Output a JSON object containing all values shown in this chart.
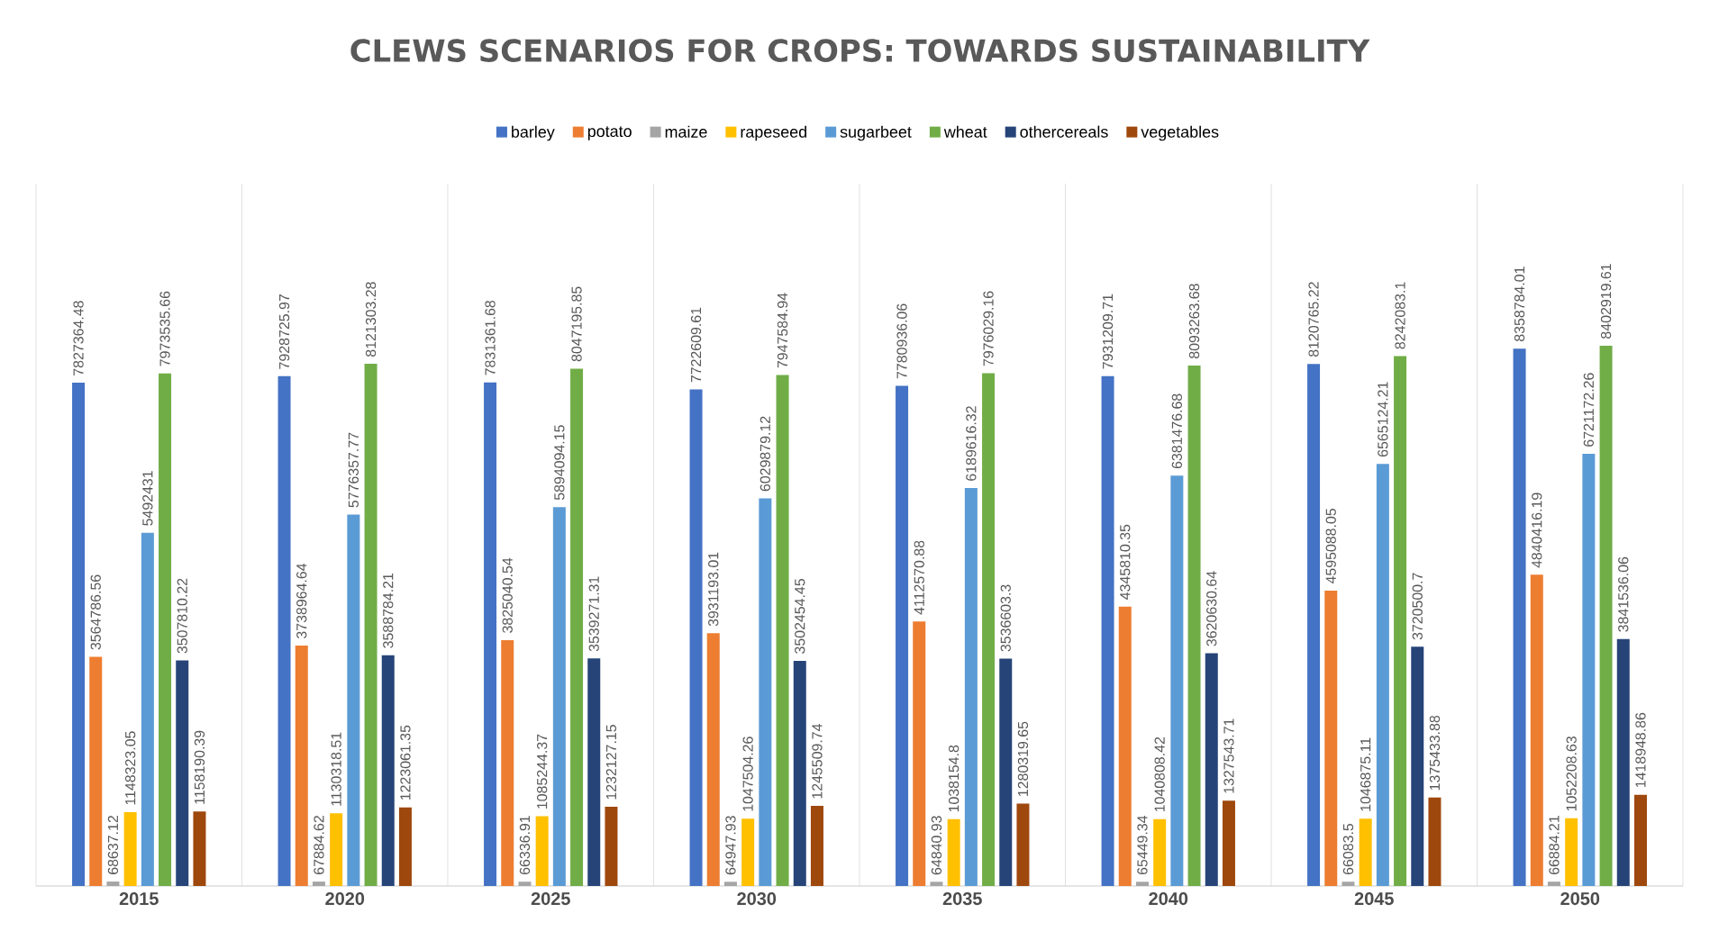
{
  "chart_data": {
    "type": "bar",
    "title": "CLEWS SCENARIOS FOR CROPS: TOWARDS SUSTAINABILITY",
    "categories": [
      "2015",
      "2020",
      "2025",
      "2030",
      "2035",
      "2040",
      "2045",
      "2050"
    ],
    "series": [
      {
        "name": "barley",
        "color": "#4472c4",
        "values": [
          7827364.48,
          7928725.97,
          7831361.68,
          7722609.61,
          7780936.06,
          7931209.71,
          8120765.22,
          8358784.01
        ]
      },
      {
        "name": "potato",
        "color": "#ed7d31",
        "values": [
          3564786.56,
          3738964.64,
          3825040.54,
          3931193.01,
          4112570.88,
          4345810.35,
          4595088.05,
          4840416.19
        ]
      },
      {
        "name": "maize",
        "color": "#a5a5a5",
        "values": [
          68637.12,
          67884.62,
          66336.91,
          64947.93,
          64840.93,
          65449.34,
          66083.5,
          66884.21
        ]
      },
      {
        "name": "rapeseed",
        "color": "#ffc000",
        "values": [
          1148323.05,
          1130318.51,
          1085244.37,
          1047504.26,
          1038154.8,
          1040808.42,
          1046875.11,
          1052208.63
        ]
      },
      {
        "name": "sugarbeet",
        "color": "#5b9bd5",
        "values": [
          5492431,
          5776357.77,
          5894094.15,
          6029879.12,
          6189616.32,
          6381476.68,
          6565124.21,
          6721172.26
        ]
      },
      {
        "name": "wheat",
        "color": "#70ad47",
        "values": [
          7973535.66,
          8121303.28,
          8047195.85,
          7947584.94,
          7976029.16,
          8093263.68,
          8242083.1,
          8402919.61
        ]
      },
      {
        "name": "othercereals",
        "color": "#264478",
        "values": [
          3507810.22,
          3588784.21,
          3539271.31,
          3502454.45,
          3536603.3,
          3620630.64,
          3720500.7,
          3841536.06
        ]
      },
      {
        "name": "vegetables",
        "color": "#9e480e",
        "values": [
          1158190.39,
          1223061.35,
          1232127.15,
          1245509.74,
          1280319.65,
          1327543.71,
          1375433.88,
          1418948.86
        ]
      }
    ],
    "data_labels": true,
    "legend": "top",
    "grid": "x",
    "tick_labels": "x"
  }
}
